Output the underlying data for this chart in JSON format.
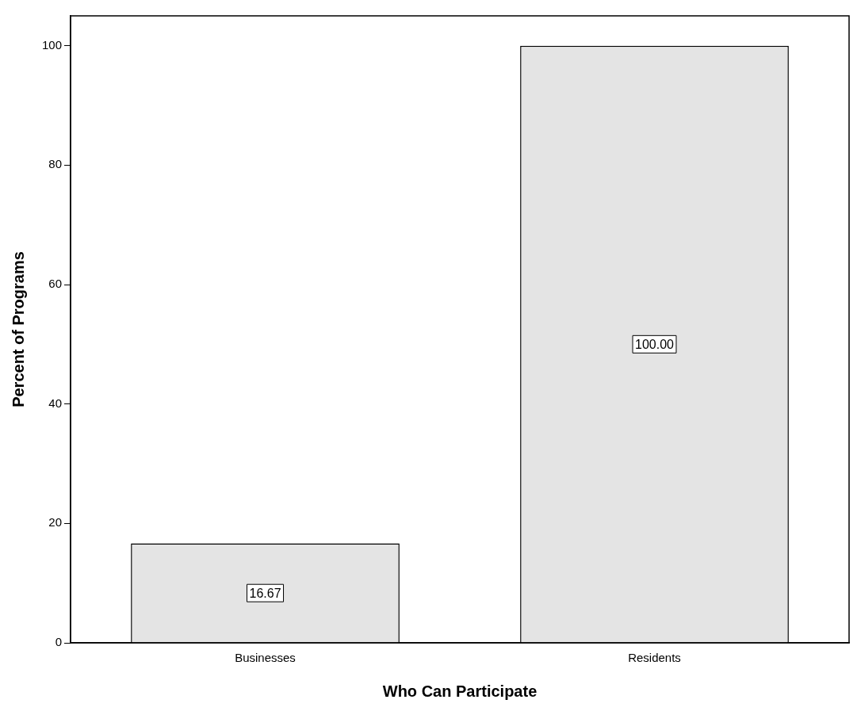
{
  "chart_data": {
    "type": "bar",
    "xlabel": "Who Can Participate",
    "ylabel": "Percent of Programs",
    "categories": [
      "Businesses",
      "Residents"
    ],
    "values": [
      16.67,
      100.0
    ],
    "value_labels": [
      "16.67",
      "100.00"
    ],
    "color": "#e4e4e4",
    "ylim": [
      0,
      105
    ],
    "yticks": [
      0,
      20,
      40,
      60,
      80,
      100
    ],
    "grid": false,
    "legend": false
  }
}
